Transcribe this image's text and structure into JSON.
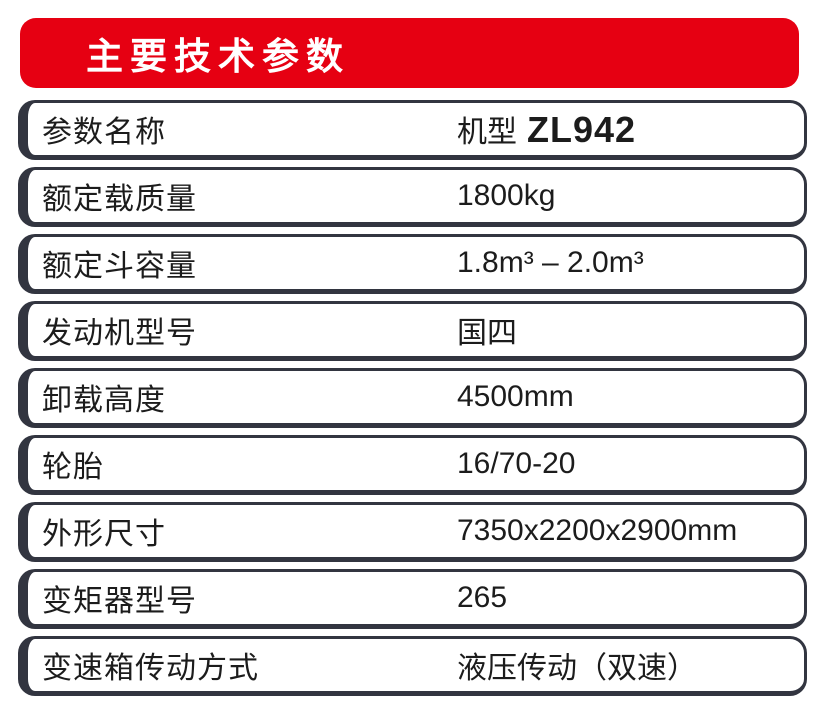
{
  "banner": {
    "title": "主要技术参数",
    "bg_color": "#e60012",
    "text_color": "#ffffff"
  },
  "table": {
    "border_color": "#323540",
    "text_color": "#1c1c1c",
    "rows": [
      {
        "label": "参数名称",
        "value": "机型",
        "model": "ZL942"
      },
      {
        "label": "额定载质量",
        "value": "1800kg"
      },
      {
        "label": "额定斗容量",
        "value": "1.8m³ – 2.0m³"
      },
      {
        "label": "发动机型号",
        "value": "国四"
      },
      {
        "label": "卸载高度",
        "value": "4500mm"
      },
      {
        "label": "轮胎",
        "value": "16/70-20"
      },
      {
        "label": "外形尺寸",
        "value": "7350x2200x2900mm"
      },
      {
        "label": "变矩器型号",
        "value": "265"
      },
      {
        "label": "变速箱传动方式",
        "value": "液压传动（双速）"
      }
    ]
  }
}
